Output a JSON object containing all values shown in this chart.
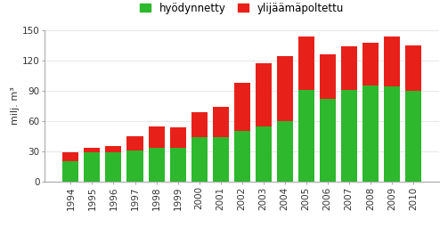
{
  "years": [
    1994,
    1995,
    1996,
    1997,
    1998,
    1999,
    2000,
    2001,
    2002,
    2003,
    2004,
    2005,
    2006,
    2007,
    2008,
    2009,
    2010
  ],
  "hyodynnetty": [
    20,
    29,
    29,
    31,
    33,
    33,
    44,
    44,
    50,
    55,
    60,
    91,
    82,
    91,
    95,
    94,
    90
  ],
  "ylijaamapoltettu": [
    9,
    4,
    6,
    14,
    22,
    21,
    25,
    30,
    48,
    62,
    64,
    53,
    44,
    43,
    43,
    50,
    45
  ],
  "color_green": "#2db82d",
  "color_red": "#e8201a",
  "ylabel": "milj. m³",
  "ylim": [
    0,
    150
  ],
  "yticks": [
    0,
    30,
    60,
    90,
    120,
    150
  ],
  "legend_hyodynnetty": "hyödynnetty",
  "legend_ylijaamapoltettu": "ylijäämäpoltettu",
  "background_color": "#ffffff",
  "tick_fontsize": 7.5,
  "ylabel_fontsize": 8,
  "legend_fontsize": 8.5
}
